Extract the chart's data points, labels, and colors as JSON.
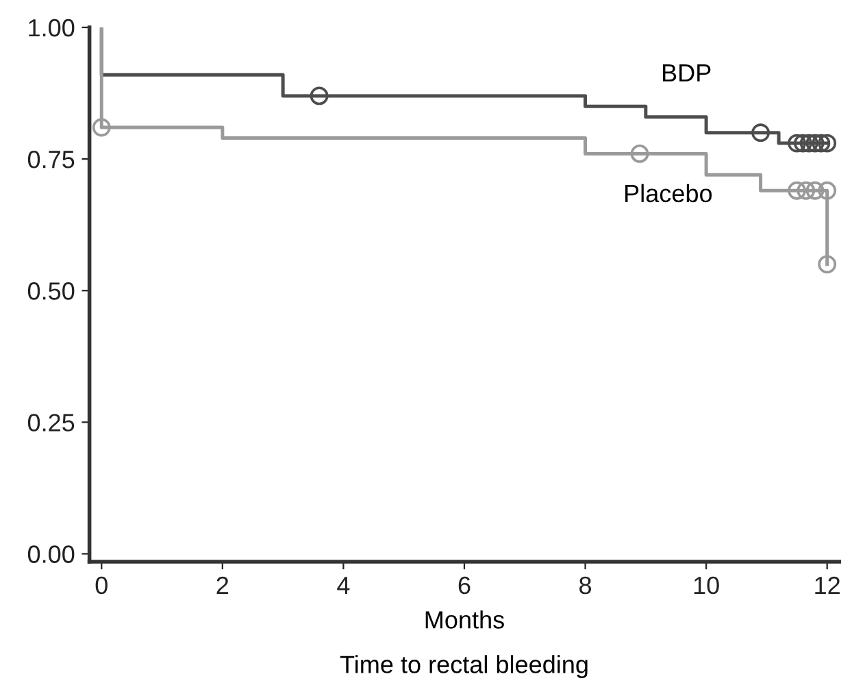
{
  "chart_data": {
    "type": "step",
    "title": "Time to rectal bleeding",
    "xlabel": "Months",
    "xlim": [
      -0.2,
      12.2
    ],
    "ylim": [
      -0.015,
      1.0
    ],
    "xticks": [
      0,
      2,
      4,
      6,
      8,
      10,
      12
    ],
    "yticks": [
      {
        "value": 0,
        "label": "0.00"
      },
      {
        "value": 0.25,
        "label": "0.25"
      },
      {
        "value": 0.5,
        "label": "0.50"
      },
      {
        "value": 0.75,
        "label": "0.75"
      },
      {
        "value": 1.0,
        "label": "1.00"
      }
    ],
    "grid": false,
    "legend": false,
    "series": [
      {
        "name": "BDP",
        "color": "#4d4d4d",
        "x": [
          0,
          0,
          3,
          8,
          9,
          10,
          11.2,
          12
        ],
        "values": [
          1.0,
          0.91,
          0.87,
          0.85,
          0.83,
          0.8,
          0.78,
          0.78
        ]
      },
      {
        "name": "Placebo",
        "color": "#9a9a9a",
        "x": [
          0,
          0,
          2,
          8,
          10,
          10.9,
          12,
          12
        ],
        "values": [
          1.0,
          0.81,
          0.79,
          0.76,
          0.72,
          0.69,
          0.69,
          0.55
        ]
      },
      {
        "type": "scatter",
        "marker": "circle",
        "color": "#4d4d4d",
        "x": [
          3.6,
          10.9,
          11.5,
          11.6,
          11.7,
          11.8,
          11.9,
          12
        ],
        "values": [
          0.87,
          0.8,
          0.78,
          0.78,
          0.78,
          0.78,
          0.78,
          0.78
        ]
      },
      {
        "type": "scatter",
        "marker": "circle",
        "color": "#9a9a9a",
        "x": [
          0,
          8.9,
          11.5,
          11.65,
          11.8,
          12,
          12
        ],
        "values": [
          0.81,
          0.76,
          0.69,
          0.69,
          0.69,
          0.69,
          0.55
        ]
      }
    ]
  }
}
